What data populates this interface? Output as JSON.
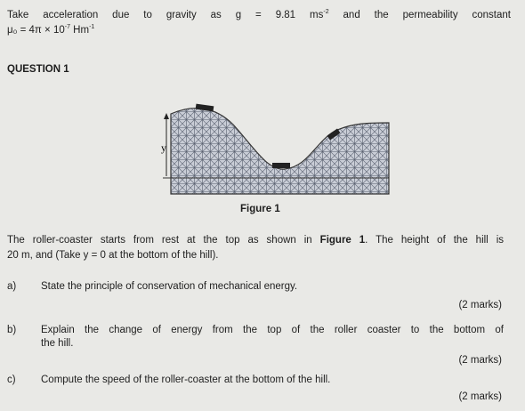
{
  "header": {
    "line1": "Take acceleration due to gravity as g = 9.81 ms",
    "line1_sup": "-2",
    "line1_end": "and the permeability constant",
    "line2": "μ₀ = 4π × 10",
    "line2_sup": "-7",
    "line2_unit": "Hm",
    "line2_unit_sup": "-1"
  },
  "question": {
    "title": "QUESTION 1",
    "figure": {
      "y_label": "y",
      "caption": "Figure 1"
    },
    "intro": {
      "line1": "The roller-coaster starts from rest at the top as shown in",
      "line1_bold": "Figure 1",
      "line1_end": ". The height of the hill is",
      "line2": "20 m, and (Take y = 0 at the bottom of the hill)."
    },
    "parts": [
      {
        "label": "a)",
        "lines": [
          "State the principle of conservation of mechanical energy."
        ],
        "marks": "(2 marks)"
      },
      {
        "label": "b)",
        "lines": [
          "Explain the change of energy from the top of the roller coaster to the bottom of",
          "the hill."
        ],
        "marks": "(2 marks)"
      },
      {
        "label": "c)",
        "lines": [
          "Compute the speed of the roller-coaster at the bottom of the hill."
        ],
        "marks": "(2 marks)"
      }
    ]
  }
}
